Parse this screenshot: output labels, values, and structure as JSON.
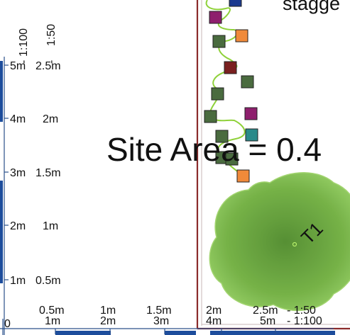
{
  "drawing": {
    "partial_title": "stagge",
    "site_area_label": "Site Area = 0.4",
    "tree_label": "T1",
    "origin_label": "0",
    "colors": {
      "ruler": "#2a4f8a",
      "ruler_bar": "#1d4d9c",
      "boundary": "#8b2b2b",
      "hedge_line": "#8fd13a",
      "tree_fill": "#6fae3e"
    }
  },
  "left_ruler": {
    "scale_top_1": "1:100",
    "scale_top_2": "1:50",
    "ticks": [
      {
        "a": "1m",
        "b": "0.5m"
      },
      {
        "a": "2m",
        "b": "1m"
      },
      {
        "a": "3m",
        "b": "1.5m"
      },
      {
        "a": "4m",
        "b": "2m"
      },
      {
        "a": "5m",
        "b": "2.5m"
      }
    ]
  },
  "bottom_ruler": {
    "ticks": [
      {
        "top": "0.5m",
        "bottom": "1m"
      },
      {
        "top": "1m",
        "bottom": "2m"
      },
      {
        "top": "1.5m",
        "bottom": "3m"
      },
      {
        "top": "2m",
        "bottom": "4m"
      },
      {
        "top": "2.5m",
        "bottom": "5m"
      }
    ],
    "scale_top": "- 1:50",
    "scale_bottom": "- 1:100"
  },
  "plants": [
    {
      "color": "#1b3a8f"
    },
    {
      "color": "#8e1f6d"
    },
    {
      "color": "#f08a3a"
    },
    {
      "color": "#4a6b3f"
    },
    {
      "color": "#7a2020"
    },
    {
      "color": "#4a6b3f"
    },
    {
      "color": "#4a6b3f"
    },
    {
      "color": "#8e1f6d"
    },
    {
      "color": "#4a6b3f"
    },
    {
      "color": "#4a6b3f"
    },
    {
      "color": "#2a8a8a"
    },
    {
      "color": "#4a6b3f"
    },
    {
      "color": "#4a6b3f"
    },
    {
      "color": "#f08a3a"
    }
  ]
}
